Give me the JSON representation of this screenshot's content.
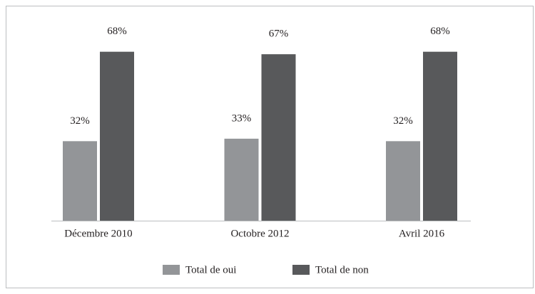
{
  "chart_data": {
    "type": "bar",
    "categories": [
      "Décembre 2010",
      "Octobre 2012",
      "Avril 2016"
    ],
    "series": [
      {
        "name": "Total de oui",
        "color": "#939598",
        "values": [
          32,
          33,
          32
        ],
        "value_labels": [
          "32%",
          "33%",
          "32%"
        ]
      },
      {
        "name": "Total de non",
        "color": "#58595b",
        "values": [
          68,
          67,
          68
        ],
        "value_labels": [
          "68%",
          "67%",
          "68%"
        ]
      }
    ],
    "legend": "bottom"
  }
}
